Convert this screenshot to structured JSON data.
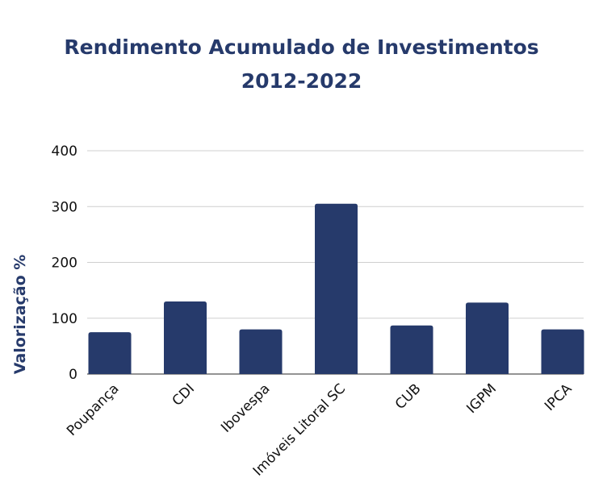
{
  "chart_data": {
    "type": "bar",
    "title": "Rendimento Acumulado de Investimentos",
    "subtitle": "2012-2022",
    "xlabel": "",
    "ylabel": "Valorização %",
    "categories": [
      "Poupança",
      "CDI",
      "Ibovespa",
      "Imóveis Litoral SC",
      "CUB",
      "IGPM",
      "IPCA"
    ],
    "values": [
      75,
      130,
      80,
      305,
      87,
      128,
      80
    ],
    "ylim": [
      0,
      400
    ],
    "yticks": [
      0,
      100,
      200,
      300,
      400
    ],
    "grid": true,
    "bar_color": "#263a6b"
  }
}
